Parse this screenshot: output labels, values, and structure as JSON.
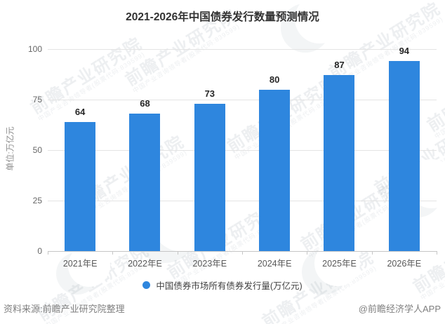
{
  "title": "2021-2026年中国债券发行数量预测情况",
  "chart_data": {
    "type": "bar",
    "title": "2021-2026年中国债券发行数量预测情况",
    "categories": [
      "2021年E",
      "2022年E",
      "2023年E",
      "2024年E",
      "2025年E",
      "2026年E"
    ],
    "values": [
      64,
      68,
      73,
      80,
      87,
      94
    ],
    "xlabel": "",
    "ylabel": "单位:万亿元",
    "ylim": [
      0,
      100
    ],
    "yticks": [
      0,
      25,
      50,
      75,
      100
    ],
    "grid": true,
    "bar_color": "#2E86DE",
    "legend": {
      "label": "中国债券市场所有债券发行量(万亿元)",
      "position": "bottom"
    }
  },
  "footer": {
    "source": "资料来源:前瞻产业研究院整理",
    "credit": "@前瞻经济学人APP"
  },
  "watermark": {
    "text": "前瞻产业研究院",
    "subtext": "中国产业咨询领导者(股票代码:839599)"
  }
}
